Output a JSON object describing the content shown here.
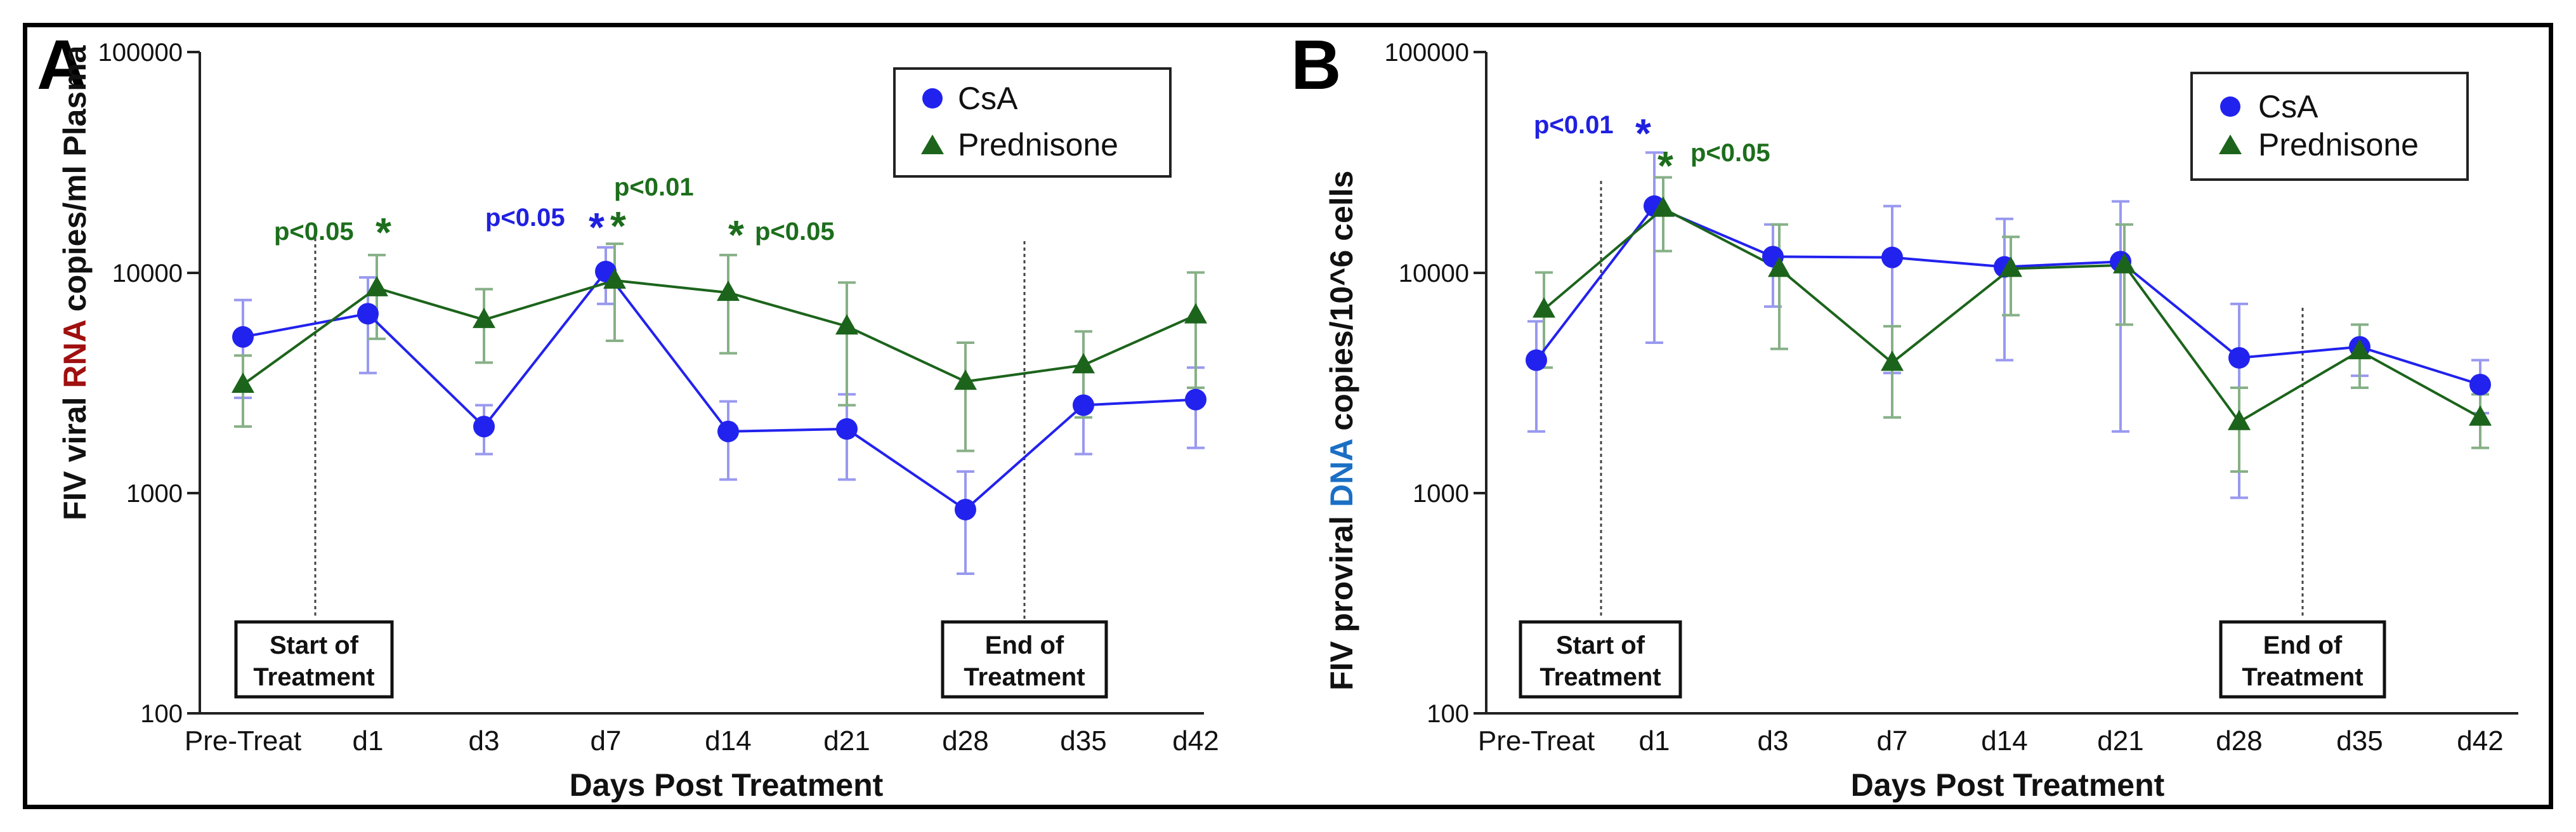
{
  "colors": {
    "csa": "#2222ee",
    "csa_err": "#9999f0",
    "pred": "#1c641c",
    "pred_err": "#87b087",
    "rna": "#a01010",
    "dna": "#1a6fc4",
    "sig_csa": "#2020e0",
    "sig_pred": "#1c6e1c"
  },
  "x_axis_label": "Days Post Treatment",
  "legend": {
    "csa": "CsA",
    "pred": "Prednisone"
  },
  "chart_data": [
    {
      "panel": "A",
      "type": "line",
      "yscale": "log",
      "ylim": [
        100,
        100000
      ],
      "yticks": [
        "100",
        "1000",
        "10000",
        "100000"
      ],
      "categories": [
        "Pre-Treat",
        "d1",
        "d3",
        "d7",
        "d14",
        "d21",
        "d28",
        "d35",
        "d42"
      ],
      "ylabel_parts": [
        "FIV viral ",
        "RNA",
        " copies/ml Plasma"
      ],
      "xlabel": "Days Post Treatment",
      "series": [
        {
          "name": "CsA",
          "values": [
            5100,
            6500,
            2000,
            10100,
            1900,
            1950,
            840,
            2500,
            2650
          ],
          "err_low": [
            2700,
            3500,
            1500,
            7200,
            1150,
            1150,
            430,
            1500,
            1600
          ],
          "err_high": [
            7500,
            9500,
            2500,
            13000,
            2600,
            2800,
            1250,
            3600,
            3700
          ]
        },
        {
          "name": "Prednisone",
          "values": [
            3100,
            8500,
            6100,
            9200,
            8100,
            5700,
            3200,
            3800,
            6400
          ],
          "err_low": [
            2000,
            5000,
            3900,
            4900,
            4300,
            2500,
            1550,
            2200,
            3000
          ],
          "err_high": [
            4200,
            12000,
            8400,
            13500,
            12000,
            9000,
            4800,
            5400,
            10000
          ]
        }
      ],
      "annotations": {
        "start_treatment": [
          "Start of",
          "Treatment"
        ],
        "end_treatment": [
          "End of",
          "Treatment"
        ],
        "sig": [
          {
            "text": "p<0.05",
            "star": "*",
            "series": "Prednisone",
            "at": "d1"
          },
          {
            "text": "p<0.05",
            "star": "*",
            "series": "CsA",
            "at": "d7"
          },
          {
            "text": "p<0.01",
            "star": "*",
            "series": "Prednisone",
            "at": "d7"
          },
          {
            "text": "p<0.05",
            "star": "*",
            "series": "Prednisone",
            "at": "d14"
          }
        ]
      }
    },
    {
      "panel": "B",
      "type": "line",
      "yscale": "log",
      "ylim": [
        100,
        100000
      ],
      "yticks": [
        "100",
        "1000",
        "10000",
        "100000"
      ],
      "categories": [
        "Pre-Treat",
        "d1",
        "d3",
        "d7",
        "d14",
        "d21",
        "d28",
        "d35",
        "d42"
      ],
      "ylabel_parts": [
        "FIV proviral ",
        "DNA",
        " copies/10^6 cells"
      ],
      "xlabel": "Days Post Treatment",
      "series": [
        {
          "name": "CsA",
          "values": [
            4000,
            20000,
            11800,
            11700,
            10600,
            11200,
            4100,
            4600,
            3100
          ],
          "err_low": [
            1900,
            4800,
            7000,
            3500,
            4000,
            1900,
            950,
            3400,
            2300
          ],
          "err_high": [
            6000,
            35000,
            16500,
            20000,
            17500,
            21000,
            7200,
            5800,
            4000
          ]
        },
        {
          "name": "Prednisone",
          "values": [
            6800,
            19500,
            10400,
            3900,
            10400,
            10800,
            2100,
            4400,
            2200
          ],
          "err_low": [
            3700,
            12500,
            4500,
            2200,
            6400,
            5800,
            1250,
            3000,
            1600
          ],
          "err_high": [
            10000,
            27000,
            16500,
            5700,
            14500,
            16500,
            3000,
            5800,
            2800
          ]
        }
      ],
      "annotations": {
        "start_treatment": [
          "Start of",
          "Treatment"
        ],
        "end_treatment": [
          "End of",
          "Treatment"
        ],
        "sig": [
          {
            "text": "p<0.01",
            "star": "*",
            "series": "CsA",
            "at": "d1"
          },
          {
            "text": "p<0.05",
            "star": "*",
            "series": "Prednisone",
            "at": "d1"
          }
        ]
      }
    }
  ]
}
